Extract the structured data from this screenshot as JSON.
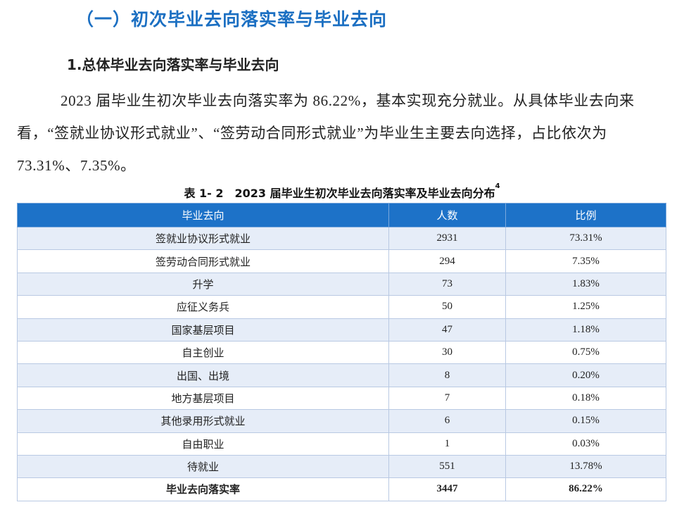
{
  "section_title": "（一）初次毕业去向落实率与毕业去向",
  "subsection_title": "1.总体毕业去向落实率与毕业去向",
  "paragraph": "2023 届毕业生初次毕业去向落实率为 86.22%，基本实现充分就业。从具体毕业去向来看，“签就业协议形式就业”、“签劳动合同形式就业”为毕业生主要去向选择，占比依次为 73.31%、7.35%。",
  "table": {
    "caption": "表 1- 2　2023 届毕业生初次毕业去向落实率及毕业去向分布",
    "footnote_mark": "4",
    "headers": [
      "毕业去向",
      "人数",
      "比例"
    ],
    "rows": [
      {
        "category": "签就业协议形式就业",
        "count": "2931",
        "ratio": "73.31%"
      },
      {
        "category": "签劳动合同形式就业",
        "count": "294",
        "ratio": "7.35%"
      },
      {
        "category": "升学",
        "count": "73",
        "ratio": "1.83%"
      },
      {
        "category": "应征义务兵",
        "count": "50",
        "ratio": "1.25%"
      },
      {
        "category": "国家基层项目",
        "count": "47",
        "ratio": "1.18%"
      },
      {
        "category": "自主创业",
        "count": "30",
        "ratio": "0.75%"
      },
      {
        "category": "出国、出境",
        "count": "8",
        "ratio": "0.20%"
      },
      {
        "category": "地方基层项目",
        "count": "7",
        "ratio": "0.18%"
      },
      {
        "category": "其他录用形式就业",
        "count": "6",
        "ratio": "0.15%"
      },
      {
        "category": "自由职业",
        "count": "1",
        "ratio": "0.03%"
      },
      {
        "category": "待就业",
        "count": "551",
        "ratio": "13.78%"
      }
    ],
    "total": {
      "category": "毕业去向落实率",
      "count": "3447",
      "ratio": "86.22%"
    }
  },
  "colors": {
    "heading": "#1b6fc2",
    "table_header": "#1d72c8",
    "row_stripe": "#e6edf8"
  }
}
